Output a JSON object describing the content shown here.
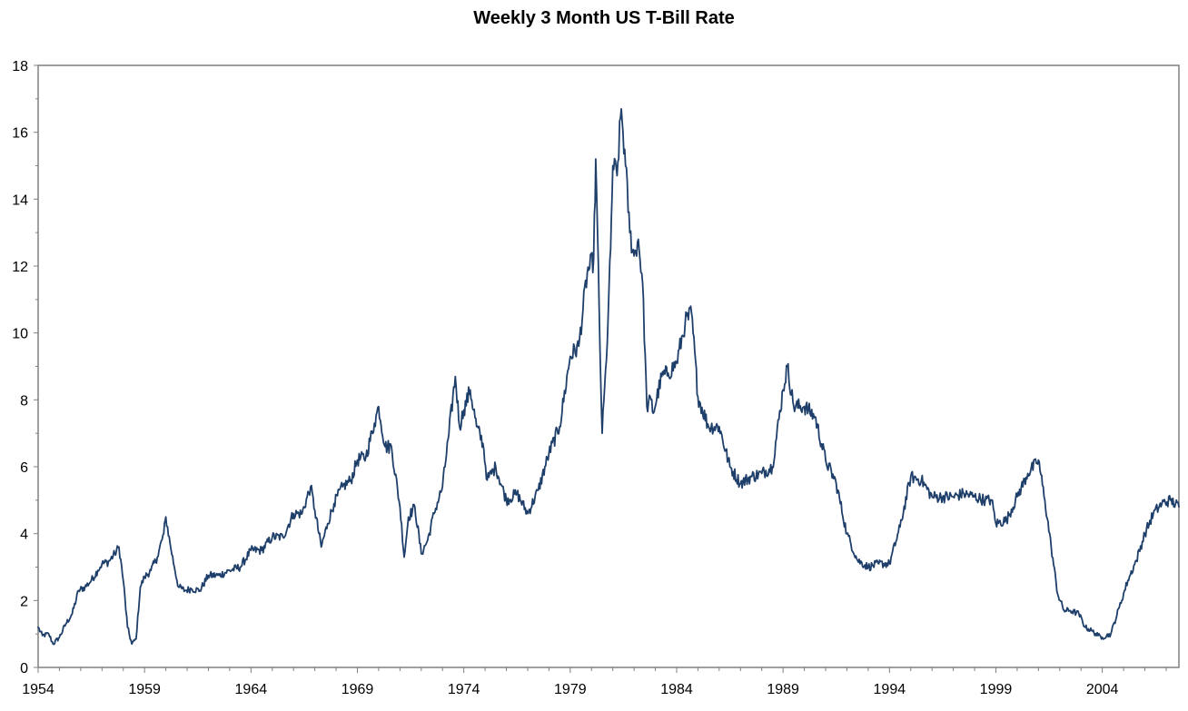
{
  "chart_data": {
    "type": "line",
    "title": "Weekly 3 Month US T-Bill Rate",
    "xlabel": "",
    "ylabel": "",
    "xlim": [
      1954,
      2007.6
    ],
    "ylim": [
      0,
      18
    ],
    "x_ticks": [
      "1954",
      "1959",
      "1964",
      "1969",
      "1974",
      "1979",
      "1984",
      "1989",
      "1994",
      "1999",
      "2004"
    ],
    "y_ticks": [
      "0",
      "2",
      "4",
      "6",
      "8",
      "10",
      "12",
      "14",
      "16",
      "18"
    ],
    "grid": false,
    "legend": "none",
    "line_color": "#1f3f6b",
    "series": [
      {
        "x": [
          1954.0,
          1954.2,
          1954.5,
          1954.7,
          1955.0,
          1955.3,
          1955.6,
          1955.9,
          1956.2,
          1956.5,
          1956.8,
          1957.0,
          1957.3,
          1957.6,
          1957.8,
          1958.0,
          1958.2,
          1958.4,
          1958.6,
          1958.8,
          1959.0,
          1959.3,
          1959.6,
          1959.9,
          1960.0,
          1960.2,
          1960.4,
          1960.6,
          1960.9,
          1961.2,
          1961.6,
          1962.0,
          1962.5,
          1963.0,
          1963.5,
          1964.0,
          1964.5,
          1965.0,
          1965.5,
          1966.0,
          1966.4,
          1966.8,
          1967.0,
          1967.3,
          1967.6,
          1967.9,
          1968.3,
          1968.7,
          1969.0,
          1969.4,
          1969.8,
          1970.0,
          1970.3,
          1970.6,
          1971.0,
          1971.2,
          1971.4,
          1971.7,
          1972.0,
          1972.3,
          1972.6,
          1973.0,
          1973.3,
          1973.6,
          1973.8,
          1974.0,
          1974.3,
          1974.6,
          1974.9,
          1975.1,
          1975.5,
          1976.0,
          1976.5,
          1977.0,
          1977.5,
          1978.0,
          1978.5,
          1979.0,
          1979.4,
          1979.8,
          1980.1,
          1980.2,
          1980.4,
          1980.5,
          1980.7,
          1980.9,
          1981.0,
          1981.2,
          1981.4,
          1981.6,
          1981.8,
          1982.0,
          1982.2,
          1982.4,
          1982.6,
          1982.8,
          1982.9,
          1983.3,
          1983.6,
          1984.0,
          1984.4,
          1984.7,
          1985.0,
          1985.5,
          1986.0,
          1986.5,
          1987.0,
          1987.5,
          1988.0,
          1988.5,
          1989.0,
          1989.2,
          1989.5,
          1990.0,
          1990.5,
          1991.0,
          1991.5,
          1992.0,
          1992.5,
          1993.0,
          1993.5,
          1994.0,
          1994.5,
          1995.0,
          1995.5,
          1996.0,
          1996.5,
          1997.0,
          1997.5,
          1998.0,
          1998.5,
          1998.8,
          1999.0,
          1999.5,
          2000.0,
          2000.5,
          2000.9,
          2001.0,
          2001.3,
          2001.6,
          2001.9,
          2002.2,
          2002.5,
          2002.9,
          2003.2,
          2003.5,
          2003.8,
          2004.0,
          2004.4,
          2004.8,
          2005.2,
          2005.6,
          2006.0,
          2006.4,
          2006.8,
          2007.2,
          2007.6
        ],
        "y": [
          1.2,
          0.95,
          1.0,
          0.7,
          0.9,
          1.3,
          1.6,
          2.3,
          2.4,
          2.6,
          2.9,
          3.1,
          3.15,
          3.4,
          3.6,
          2.6,
          1.2,
          0.7,
          0.85,
          2.4,
          2.7,
          2.9,
          3.3,
          4.0,
          4.5,
          3.7,
          3.0,
          2.4,
          2.3,
          2.35,
          2.3,
          2.75,
          2.75,
          2.9,
          3.0,
          3.5,
          3.5,
          3.9,
          3.9,
          4.6,
          4.6,
          5.4,
          4.7,
          3.6,
          4.3,
          4.9,
          5.4,
          5.6,
          6.2,
          6.3,
          7.3,
          7.8,
          6.6,
          6.6,
          4.8,
          3.3,
          4.5,
          4.8,
          3.4,
          3.8,
          4.6,
          5.4,
          7.0,
          8.7,
          7.2,
          7.7,
          8.3,
          7.2,
          6.7,
          5.6,
          6.0,
          5.0,
          5.2,
          4.6,
          5.3,
          6.4,
          7.2,
          9.3,
          9.6,
          11.8,
          12.2,
          15.2,
          9.5,
          7.0,
          9.2,
          12.5,
          15.0,
          14.7,
          16.7,
          15.0,
          13.0,
          12.3,
          12.8,
          11.5,
          7.8,
          8.0,
          7.6,
          8.7,
          8.8,
          9.1,
          10.3,
          10.6,
          8.1,
          7.2,
          7.2,
          6.0,
          5.5,
          5.7,
          5.8,
          6.0,
          8.3,
          9.0,
          7.8,
          7.8,
          7.5,
          6.2,
          5.5,
          4.0,
          3.2,
          3.0,
          3.1,
          3.1,
          4.2,
          5.7,
          5.6,
          5.1,
          5.1,
          5.1,
          5.2,
          5.1,
          5.0,
          5.0,
          4.3,
          4.4,
          5.1,
          5.8,
          6.1,
          6.2,
          5.0,
          3.6,
          2.2,
          1.7,
          1.7,
          1.6,
          1.2,
          1.1,
          0.95,
          0.9,
          1.0,
          1.8,
          2.6,
          3.2,
          4.0,
          4.6,
          4.9,
          5.0,
          4.8
        ]
      }
    ]
  }
}
